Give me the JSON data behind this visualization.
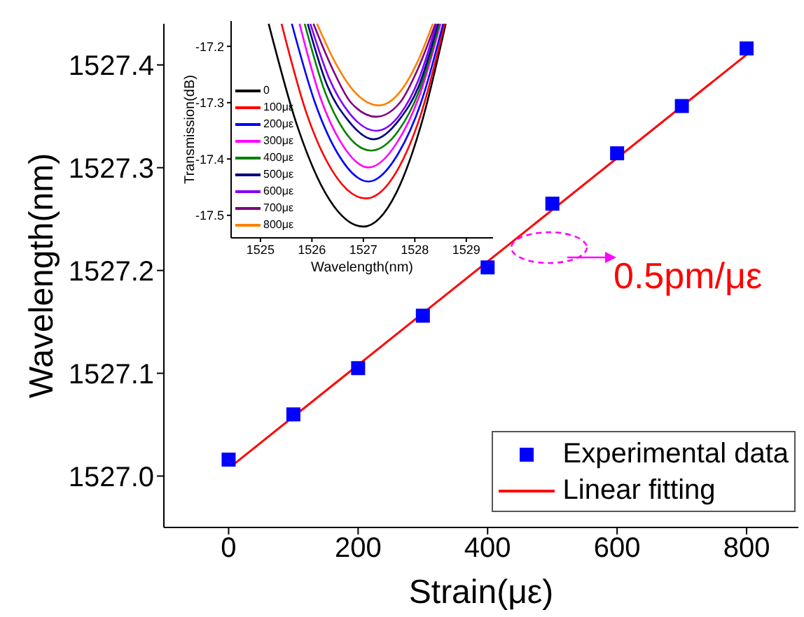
{
  "chart_data": [
    {
      "type": "scatter",
      "xlabel": "Strain(με)",
      "ylabel": "Wavelength(nm)",
      "xlim": [
        -100,
        880
      ],
      "xticks": [
        0,
        200,
        400,
        600,
        800
      ],
      "ylim": [
        1526.95,
        1527.44
      ],
      "yticks": [
        {
          "value": 1527,
          "label": "1527.0"
        },
        1527.1,
        1527.2,
        1527.3,
        1527.4
      ],
      "legend": "bottom right",
      "annotations": [
        "0.5pm/με"
      ],
      "series": [
        {
          "name": "Experimental data",
          "marker": "square",
          "color": "#0000ff",
          "x": [
            0,
            100,
            200,
            300,
            400,
            500,
            600,
            700,
            800
          ],
          "values": [
            1527.016,
            1527.06,
            1527.105,
            1527.156,
            1527.203,
            1527.265,
            1527.314,
            1527.36,
            1527.416
          ]
        },
        {
          "name": "Linear fitting",
          "type": "line",
          "marker": "none",
          "color": "#ff0000",
          "x": [
            5,
            800
          ],
          "values": [
            1527.01,
            1527.41
          ]
        }
      ]
    },
    {
      "type": "line",
      "xlabel": "Wavelength(nm)",
      "ylabel": "Transmission(dB)",
      "xlim": [
        1524.43,
        1529.52
      ],
      "xticks": [
        1525,
        1526,
        1527,
        1528,
        1529
      ],
      "ylim": [
        -17.54,
        -17.155
      ],
      "yticks": [
        -17.2,
        -17.3,
        -17.4,
        -17.5
      ],
      "legend": "left",
      "marker": "none",
      "series": [
        {
          "name": "0",
          "color": "#000000",
          "x": [
            1525.16,
            1525.71,
            1526.26,
            1527.0,
            1527.64,
            1528.12,
            1528.6
          ],
          "values": [
            -17.16,
            -17.34,
            -17.46,
            -17.52,
            -17.46,
            -17.34,
            -17.16
          ]
        },
        {
          "name": "100με",
          "color": "#ff0000",
          "x": [
            1525.41,
            1525.9,
            1526.39,
            1527.05,
            1527.66,
            1528.12,
            1528.58
          ],
          "values": [
            -17.16,
            -17.32,
            -17.42,
            -17.47,
            -17.42,
            -17.32,
            -17.16
          ]
        },
        {
          "name": "200με",
          "color": "#0000ff",
          "x": [
            1525.61,
            1526.06,
            1526.5,
            1527.1,
            1527.68,
            1528.12,
            1528.55
          ],
          "values": [
            -17.16,
            -17.3,
            -17.39,
            -17.44,
            -17.39,
            -17.3,
            -17.16
          ]
        },
        {
          "name": "300με",
          "color": "#ff00ff",
          "x": [
            1525.76,
            1526.16,
            1526.56,
            1527.1,
            1527.66,
            1528.08,
            1528.5
          ],
          "values": [
            -17.16,
            -17.29,
            -17.37,
            -17.415,
            -17.37,
            -17.29,
            -17.16
          ]
        },
        {
          "name": "400με",
          "color": "#008000",
          "x": [
            1525.86,
            1526.25,
            1526.63,
            1527.15,
            1527.68,
            1528.08,
            1528.48
          ],
          "values": [
            -17.16,
            -17.28,
            -17.35,
            -17.385,
            -17.35,
            -17.28,
            -17.16
          ]
        },
        {
          "name": "500με",
          "color": "#000080",
          "x": [
            1525.92,
            1526.3,
            1526.69,
            1527.2,
            1527.7,
            1528.08,
            1528.45
          ],
          "values": [
            -17.16,
            -17.27,
            -17.33,
            -17.365,
            -17.33,
            -17.27,
            -17.16
          ]
        },
        {
          "name": "600με",
          "color": "#8000ff",
          "x": [
            1525.97,
            1526.35,
            1526.74,
            1527.25,
            1527.72,
            1528.07,
            1528.42
          ],
          "values": [
            -17.16,
            -17.26,
            -17.32,
            -17.35,
            -17.32,
            -17.26,
            -17.16
          ]
        },
        {
          "name": "700με",
          "color": "#800080",
          "x": [
            1526.03,
            1526.4,
            1526.76,
            1527.25,
            1527.71,
            1528.06,
            1528.4
          ],
          "values": [
            -17.16,
            -17.24,
            -17.3,
            -17.325,
            -17.3,
            -17.24,
            -17.16
          ]
        },
        {
          "name": "800με",
          "color": "#ff8000",
          "x": [
            1526.1,
            1526.46,
            1526.82,
            1527.3,
            1527.72,
            1528.04,
            1528.35
          ],
          "values": [
            -17.16,
            -17.23,
            -17.28,
            -17.305,
            -17.28,
            -17.23,
            -17.16
          ]
        }
      ]
    }
  ]
}
